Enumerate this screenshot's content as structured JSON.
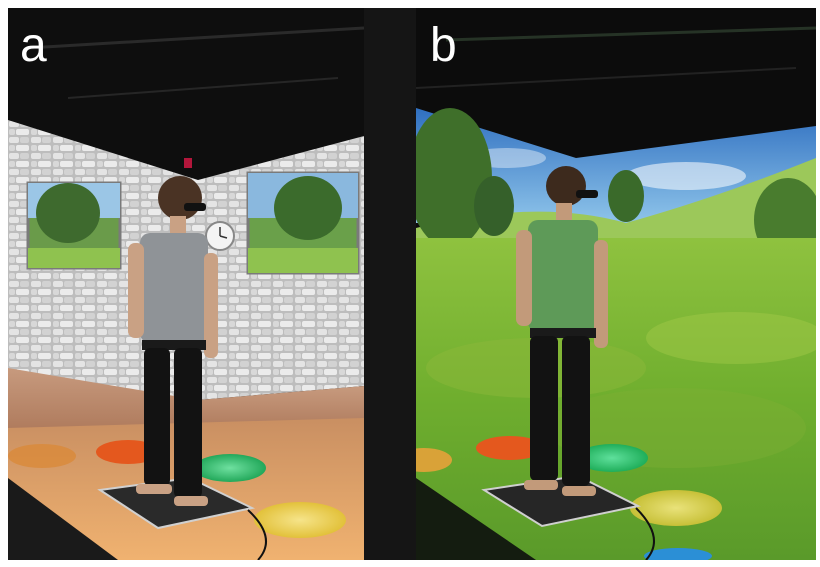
{
  "figure": {
    "panels": [
      {
        "label": "a",
        "scene": "room-with-stone-walls-and-window-projections"
      },
      {
        "label": "b",
        "scene": "open-meadow-projection"
      }
    ],
    "colors": {
      "stone_wall": "#c9c9c9",
      "floor_a": "#e8a76a",
      "meadow_green": "#7fb33a",
      "sky_blue": "#4f8fd6",
      "target_orange": "#e55a1f",
      "target_green": "#2fbf6a",
      "target_yellow": "#e6c83a"
    }
  }
}
